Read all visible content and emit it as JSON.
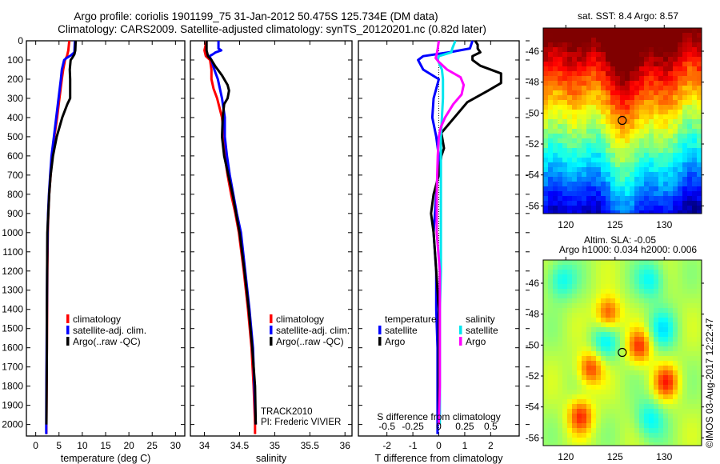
{
  "header": {
    "title_line1": "Argo profile: coriolis 1901199_75 31-Jan-2012 50.475S 125.734E (DM data)",
    "title_line2": "Climatology: CARS2009. Satellite-adjusted climatology: synTS_20120201.nc (0.82d later)"
  },
  "colors": {
    "climatology": "#ff0000",
    "satellite": "#0000ff",
    "argo": "#000000",
    "sal_satellite": "#00e5ee",
    "sal_argo": "#ff00ff"
  },
  "chart_data": [
    {
      "type": "line",
      "id": "temperature",
      "xlabel": "temperature (deg C)",
      "ylabel": "depth",
      "xlim": [
        -2,
        32
      ],
      "ylim": [
        2060,
        0
      ],
      "xticks": [
        0,
        5,
        10,
        15,
        20,
        25,
        30
      ],
      "yticks": [
        0,
        100,
        200,
        300,
        400,
        500,
        600,
        700,
        800,
        900,
        1000,
        1100,
        1200,
        1300,
        1400,
        1500,
        1600,
        1700,
        1800,
        1900,
        2000
      ],
      "legend": {
        "placement": "lower-center",
        "entries": [
          "climatology",
          "satellite-adj. clim.",
          "Argo(..raw -QC)"
        ]
      },
      "series": [
        {
          "name": "climatology",
          "color": "climatology",
          "depth": [
            0,
            50,
            80,
            100,
            150,
            200,
            300,
            400,
            500,
            600,
            700,
            800,
            900,
            1000,
            1200,
            1400,
            1600,
            1800,
            2000,
            2050
          ],
          "values": [
            7.2,
            7.0,
            6.7,
            6.3,
            5.9,
            5.6,
            5.1,
            4.6,
            4.0,
            3.5,
            3.2,
            2.9,
            2.7,
            2.6,
            2.5,
            2.45,
            2.4,
            2.35,
            2.3,
            2.3
          ]
        },
        {
          "name": "satellite-adj. clim.",
          "color": "satellite",
          "depth": [
            0,
            60,
            75,
            90,
            100,
            150,
            200,
            300,
            400,
            500,
            600,
            700,
            800,
            900,
            1000,
            1200,
            1400,
            1600,
            1800,
            2000,
            2050
          ],
          "values": [
            8.4,
            8.3,
            7.6,
            6.6,
            6.1,
            5.6,
            5.4,
            4.9,
            4.4,
            3.9,
            3.4,
            3.1,
            2.85,
            2.65,
            2.55,
            2.45,
            2.4,
            2.35,
            2.3,
            2.25,
            2.25
          ]
        },
        {
          "name": "Argo(..raw -QC)",
          "color": "argo",
          "depth": [
            0,
            50,
            70,
            90,
            100,
            150,
            200,
            300,
            330,
            400,
            500,
            600,
            700,
            800,
            900,
            1000,
            1200,
            1400,
            1600,
            1800,
            2000
          ],
          "values": [
            8.57,
            8.5,
            8.3,
            7.8,
            7.5,
            7.3,
            7.4,
            7.4,
            6.8,
            5.7,
            4.5,
            3.7,
            3.2,
            2.9,
            2.7,
            2.5,
            2.45,
            2.4,
            2.4,
            2.35,
            2.3
          ]
        }
      ]
    },
    {
      "type": "line",
      "id": "salinity",
      "xlabel": "salinity",
      "xlim": [
        33.8,
        36.1
      ],
      "ylim": [
        2060,
        0
      ],
      "xticks": [
        34,
        34.5,
        35,
        35.5,
        36
      ],
      "xtick_labels": [
        "34",
        "34.5",
        "35",
        "35.5",
        "36"
      ],
      "legend": {
        "placement": "lower-center",
        "entries": [
          "climatology",
          "satellite-adj. clim.",
          "Argo(..raw -QC)"
        ]
      },
      "annotation": [
        "TRACK2010",
        "PI: Frederic VIVIER"
      ],
      "series": [
        {
          "name": "climatology",
          "color": "climatology",
          "depth": [
            0,
            50,
            80,
            100,
            150,
            200,
            250,
            300,
            400,
            500,
            600,
            700,
            800,
            900,
            1000,
            1200,
            1400,
            1600,
            1800,
            2000,
            2050
          ],
          "values": [
            34.03,
            34.0,
            34.02,
            34.08,
            34.1,
            34.1,
            34.13,
            34.18,
            34.25,
            34.28,
            34.29,
            34.33,
            34.38,
            34.44,
            34.49,
            34.56,
            34.62,
            34.67,
            34.7,
            34.72,
            34.72
          ]
        },
        {
          "name": "satellite-adj. clim.",
          "color": "satellite",
          "depth": [
            0,
            40,
            50,
            60,
            70,
            80,
            100,
            150,
            200,
            300,
            400,
            500,
            600,
            700,
            800,
            900,
            1000,
            1200,
            1400,
            1600,
            1800,
            2000
          ],
          "values": [
            34.2,
            34.2,
            34.24,
            34.16,
            34.12,
            34.07,
            34.1,
            34.14,
            34.19,
            34.25,
            34.29,
            34.29,
            34.32,
            34.36,
            34.41,
            34.46,
            34.52,
            34.58,
            34.64,
            34.69,
            34.71,
            34.73
          ]
        },
        {
          "name": "Argo(..raw -QC)",
          "color": "argo",
          "depth": [
            0,
            50,
            80,
            100,
            130,
            180,
            230,
            260,
            300,
            330,
            400,
            500,
            600,
            700,
            800,
            900,
            1000,
            1200,
            1400,
            1600,
            1800,
            2000
          ],
          "values": [
            34.03,
            34.03,
            34.05,
            34.1,
            34.15,
            34.25,
            34.33,
            34.35,
            34.33,
            34.28,
            34.26,
            34.25,
            34.28,
            34.34,
            34.4,
            34.45,
            34.5,
            34.57,
            34.63,
            34.68,
            34.72,
            34.73
          ]
        }
      ]
    },
    {
      "type": "line",
      "id": "difference",
      "xlabel": "T difference from climatology",
      "x2label": "S difference from climatology",
      "xlim": [
        -3.1,
        3.1
      ],
      "ylim": [
        2060,
        0
      ],
      "xticks": [
        -2,
        -1,
        0,
        1,
        2
      ],
      "x2ticks": [
        -0.5,
        -0.25,
        0,
        0.25,
        0.5
      ],
      "x2tick_labels": [
        "-0.5",
        "-0.25",
        "0",
        "0.25",
        "0.5"
      ],
      "legend": {
        "placement": "lower-center",
        "groups": [
          {
            "title": "temperature",
            "entries": [
              "satellite",
              "Argo"
            ]
          },
          {
            "title": "salinity",
            "entries": [
              "satellite",
              "Argo"
            ]
          }
        ]
      },
      "series": [
        {
          "name": "temperature satellite",
          "color": "satellite",
          "depth": [
            0,
            40,
            60,
            80,
            100,
            150,
            200,
            250,
            300,
            400,
            500,
            600,
            700,
            800,
            1000,
            1200,
            1400,
            1600,
            1800,
            2000,
            2050
          ],
          "values": [
            1.3,
            1.2,
            0.4,
            -0.6,
            -0.8,
            -0.6,
            0,
            -0.1,
            -0.2,
            -0.25,
            -0.1,
            0,
            -0.05,
            -0.1,
            -0.2,
            -0.1,
            -0.1,
            -0.05,
            -0.05,
            -0.05,
            -0.05
          ]
        },
        {
          "name": "temperature Argo",
          "color": "argo",
          "depth": [
            0,
            20,
            40,
            60,
            80,
            100,
            130,
            170,
            220,
            260,
            320,
            400,
            480,
            560,
            600,
            700,
            800,
            900,
            1000,
            1200,
            1400,
            1600,
            1800,
            2000
          ],
          "values": [
            1.4,
            1.5,
            1.5,
            1.6,
            1.3,
            1.3,
            1.6,
            2.4,
            2.4,
            1.9,
            1.1,
            0.6,
            0.1,
            0.2,
            0.1,
            0.0,
            -0.2,
            -0.3,
            -0.2,
            -0.1,
            0,
            0,
            0,
            0
          ]
        },
        {
          "name": "salinity satellite",
          "color": "sal_satellite",
          "depth": [
            0,
            40,
            60,
            80,
            100,
            150,
            200,
            300,
            400,
            500,
            600,
            800,
            1000,
            1200,
            1400,
            1600,
            1800,
            2000
          ],
          "values": [
            0.16,
            0.13,
            0.12,
            0.0,
            -0.01,
            0.03,
            0.04,
            0.04,
            0.03,
            0.02,
            0.02,
            0.02,
            0.02,
            0.02,
            0.01,
            0.01,
            0.01,
            0.01
          ]
        },
        {
          "name": "salinity Argo",
          "color": "sal_argo",
          "depth": [
            0,
            40,
            70,
            90,
            110,
            150,
            190,
            230,
            280,
            330,
            400,
            450,
            500,
            600,
            800,
            1000,
            1200,
            1400,
            1600,
            1800,
            2000
          ],
          "values": [
            0.0,
            -0.01,
            -0.02,
            -0.03,
            0.0,
            0.08,
            0.21,
            0.24,
            0.22,
            0.14,
            0.06,
            0.02,
            0.0,
            -0.01,
            -0.02,
            -0.02,
            0.01,
            0.01,
            0.01,
            0.01,
            0.0
          ]
        }
      ]
    },
    {
      "type": "heatmap",
      "id": "sst-map",
      "title": "sat. SST: 8.4  Argo: 8.57",
      "xlim": [
        117.7,
        133.8
      ],
      "ylim": [
        -56.5,
        -44.5
      ],
      "xticks": [
        120,
        125,
        130
      ],
      "yticks": [
        -46,
        -48,
        -50,
        -52,
        -54,
        -56
      ],
      "marker": {
        "lon": 125.734,
        "lat": -50.475
      },
      "colormap": "jet"
    },
    {
      "type": "heatmap",
      "id": "sla-map",
      "title_line1": "Altim. SLA: -0.05",
      "title_line2": "Argo h1000: 0.034  h2000: 0.006",
      "xlim": [
        117.7,
        133.8
      ],
      "ylim": [
        -56.5,
        -44.5
      ],
      "xticks": [
        120,
        125,
        130
      ],
      "yticks": [
        -46,
        -48,
        -50,
        -52,
        -54,
        -56
      ],
      "marker": {
        "lon": 125.734,
        "lat": -50.475
      },
      "colormap": "jet",
      "highs": [
        {
          "lon": 127.5,
          "lat": -50.1
        },
        {
          "lon": 130.2,
          "lat": -52.4
        },
        {
          "lon": 122.5,
          "lat": -51.5
        },
        {
          "lon": 121.5,
          "lat": -54.6
        },
        {
          "lon": 124.3,
          "lat": -48.0
        }
      ],
      "lows": [
        {
          "lon": 124.0,
          "lat": -49.8
        },
        {
          "lon": 128.7,
          "lat": -45.8
        },
        {
          "lon": 119.5,
          "lat": -45.8
        },
        {
          "lon": 128.5,
          "lat": -54.8
        },
        {
          "lon": 129.8,
          "lat": -49.0
        }
      ]
    }
  ],
  "credit": "©IMOS 03-Aug-2017 12:22:47"
}
